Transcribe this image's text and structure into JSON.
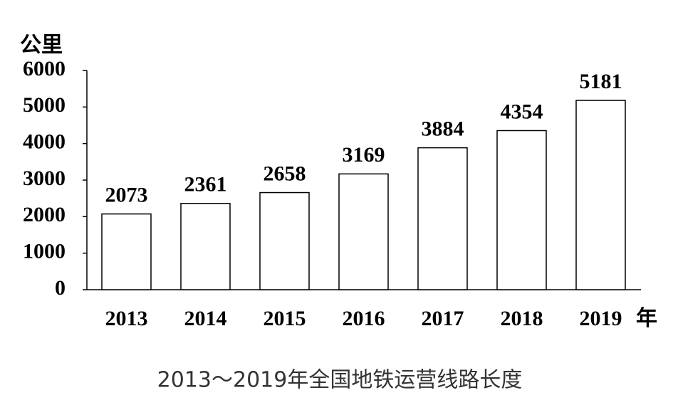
{
  "chart_data": {
    "type": "bar",
    "title": "2013～2019年全国地铁运营线路长度",
    "y_label": "公里",
    "x_label": "年",
    "categories": [
      "2013",
      "2014",
      "2015",
      "2016",
      "2017",
      "2018",
      "2019"
    ],
    "values": [
      2073,
      2361,
      2658,
      3169,
      3884,
      4354,
      5181
    ],
    "color": "#ffffff",
    "edge_color": "#000000",
    "ylim": [
      0,
      6000
    ],
    "yticks": [
      0,
      1000,
      2000,
      3000,
      4000,
      5000,
      6000
    ],
    "grid": false
  }
}
